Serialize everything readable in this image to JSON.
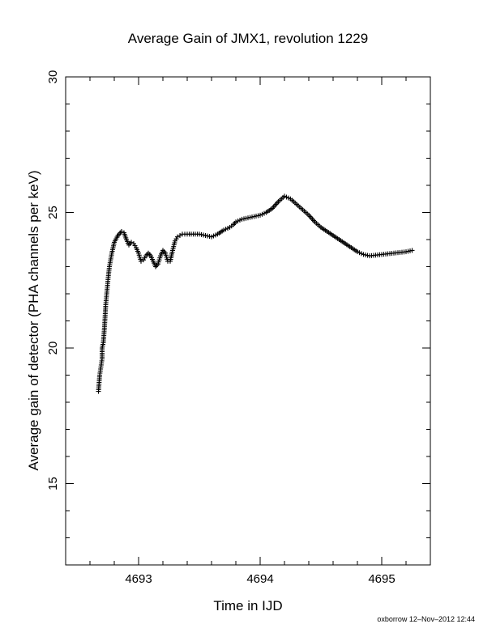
{
  "chart_data": {
    "type": "scatter",
    "title": "Average Gain of JMX1, revolution 1229",
    "xlabel": "Time in IJD",
    "ylabel": "Average gain of detector (PHA channels per keV)",
    "xlim": [
      4692.4,
      4695.4
    ],
    "ylim": [
      12,
      30
    ],
    "x_ticks": [
      4693,
      4694,
      4695
    ],
    "x_tick_labels": [
      "4693",
      "4694",
      "4695"
    ],
    "y_ticks": [
      15,
      20,
      25,
      30
    ],
    "y_tick_labels": [
      "15",
      "20",
      "25",
      "30"
    ],
    "grid": false,
    "legend": "none",
    "marker": "plus",
    "color": "#000000",
    "series": [
      {
        "x": [
          4692.67,
          4692.68,
          4692.69,
          4692.7,
          4692.7,
          4692.71,
          4692.72,
          4692.725,
          4692.73,
          4692.74,
          4692.75,
          4692.76,
          4692.78,
          4692.8,
          4692.83,
          4692.86,
          4692.88,
          4692.9,
          4692.92,
          4692.94,
          4692.96,
          4692.98,
          4693.0,
          4693.02,
          4693.04,
          4693.06,
          4693.08,
          4693.1,
          4693.12,
          4693.14,
          4693.16,
          4693.18,
          4693.2,
          4693.22,
          4693.24,
          4693.26,
          4693.28,
          4693.3,
          4693.32,
          4693.34,
          4693.36,
          4693.38,
          4693.4,
          4693.45,
          4693.5,
          4693.55,
          4693.6,
          4693.65,
          4693.7,
          4693.75,
          4693.78,
          4693.8,
          4693.85,
          4693.9,
          4693.95,
          4694.0,
          4694.05,
          4694.1,
          4694.15,
          4694.2,
          4694.25,
          4694.3,
          4694.35,
          4694.4,
          4694.45,
          4694.5,
          4694.55,
          4694.6,
          4694.65,
          4694.7,
          4694.75,
          4694.8,
          4694.85,
          4694.9,
          4695.0,
          4695.1,
          4695.2,
          4695.25
        ],
        "y": [
          18.4,
          19.0,
          19.3,
          19.6,
          20.0,
          20.2,
          20.8,
          21.2,
          21.6,
          22.1,
          22.6,
          23.0,
          23.5,
          23.9,
          24.15,
          24.3,
          24.25,
          24.0,
          23.8,
          23.9,
          23.85,
          23.7,
          23.5,
          23.2,
          23.25,
          23.4,
          23.5,
          23.4,
          23.2,
          23.0,
          23.1,
          23.4,
          23.6,
          23.5,
          23.2,
          23.2,
          23.6,
          23.95,
          24.1,
          24.15,
          24.2,
          24.2,
          24.2,
          24.2,
          24.2,
          24.15,
          24.1,
          24.2,
          24.35,
          24.45,
          24.55,
          24.65,
          24.75,
          24.8,
          24.85,
          24.9,
          25.0,
          25.15,
          25.4,
          25.6,
          25.5,
          25.3,
          25.1,
          24.9,
          24.65,
          24.45,
          24.3,
          24.15,
          24.0,
          23.85,
          23.7,
          23.55,
          23.45,
          23.4,
          23.45,
          23.5,
          23.55,
          23.6
        ]
      }
    ]
  },
  "footer": "oxborrow 12–Nov–2012 12:44"
}
